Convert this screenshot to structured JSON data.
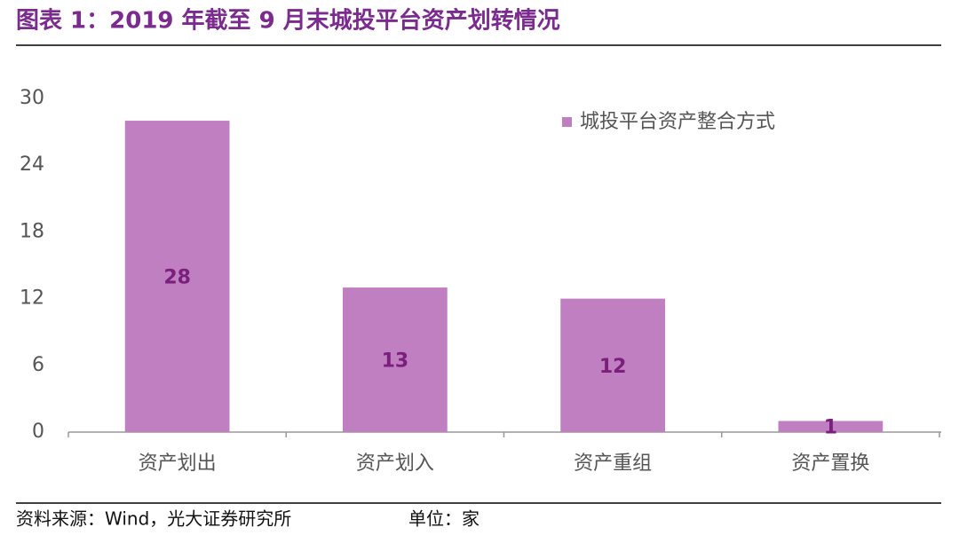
{
  "chart_data": {
    "type": "bar",
    "title": "图表 1：2019 年截至 9 月末城投平台资产划转情况",
    "categories": [
      "资产划出",
      "资产划入",
      "资产重组",
      "资产置换"
    ],
    "series": [
      {
        "name": "城投平台资产整合方式",
        "color": "#bf7fc1",
        "values": [
          28,
          13,
          12,
          1
        ]
      }
    ],
    "ylim": [
      0,
      30
    ],
    "yticks": [
      0,
      6,
      12,
      18,
      24,
      30
    ],
    "grid": false,
    "legend": "top-right"
  },
  "footer": {
    "source": "资料来源：Wind，光大证券研究所",
    "unit": "单位：家"
  }
}
